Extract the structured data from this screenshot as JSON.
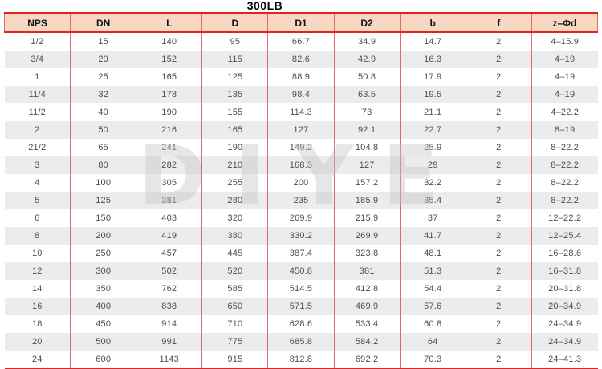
{
  "title": "300LB",
  "watermark": "DIYE",
  "table": {
    "columns": [
      "NPS",
      "DN",
      "L",
      "D",
      "D1",
      "D2",
      "b",
      "f",
      "z–Φd"
    ],
    "rows": [
      [
        "1/2",
        "15",
        "140",
        "95",
        "66.7",
        "34.9",
        "14.7",
        "2",
        "4–15.9"
      ],
      [
        "3/4",
        "20",
        "152",
        "115",
        "82.6",
        "42.9",
        "16.3",
        "2",
        "4–19"
      ],
      [
        "1",
        "25",
        "165",
        "125",
        "88.9",
        "50.8",
        "17.9",
        "2",
        "4–19"
      ],
      [
        "11/4",
        "32",
        "178",
        "135",
        "98.4",
        "63.5",
        "19.5",
        "2",
        "4–19"
      ],
      [
        "11/2",
        "40",
        "190",
        "155",
        "114.3",
        "73",
        "21.1",
        "2",
        "4–22.2"
      ],
      [
        "2",
        "50",
        "216",
        "165",
        "127",
        "92.1",
        "22.7",
        "2",
        "8–19"
      ],
      [
        "21/2",
        "65",
        "241",
        "190",
        "149.2",
        "104.8",
        "25.9",
        "2",
        "8–22.2"
      ],
      [
        "3",
        "80",
        "282",
        "210",
        "168.3",
        "127",
        "29",
        "2",
        "8–22.2"
      ],
      [
        "4",
        "100",
        "305",
        "255",
        "200",
        "157.2",
        "32.2",
        "2",
        "8–22.2"
      ],
      [
        "5",
        "125",
        "381",
        "280",
        "235",
        "185.9",
        "35.4",
        "2",
        "8–22.2"
      ],
      [
        "6",
        "150",
        "403",
        "320",
        "269.9",
        "215.9",
        "37",
        "2",
        "12–22.2"
      ],
      [
        "8",
        "200",
        "419",
        "380",
        "330.2",
        "269.9",
        "41.7",
        "2",
        "12–25.4"
      ],
      [
        "10",
        "250",
        "457",
        "445",
        "387.4",
        "323.8",
        "48.1",
        "2",
        "16–28.6"
      ],
      [
        "12",
        "300",
        "502",
        "520",
        "450.8",
        "381",
        "51.3",
        "2",
        "16–31.8"
      ],
      [
        "14",
        "350",
        "762",
        "585",
        "514.5",
        "412.8",
        "54.4",
        "2",
        "20–31.8"
      ],
      [
        "16",
        "400",
        "838",
        "650",
        "571.5",
        "469.9",
        "57.6",
        "2",
        "20–34.9"
      ],
      [
        "18",
        "450",
        "914",
        "710",
        "628.6",
        "533.4",
        "60.8",
        "2",
        "24–34.9"
      ],
      [
        "20",
        "500",
        "991",
        "775",
        "685.8",
        "584.2",
        "64",
        "2",
        "24–34.9"
      ],
      [
        "24",
        "600",
        "1143",
        "915",
        "812.8",
        "692.2",
        "70.3",
        "2",
        "24–41.3"
      ]
    ]
  },
  "colors": {
    "header_bg": "#f8d8c2",
    "row_alt_bg": "#ececec",
    "line_red": "#e2241f",
    "grid_red": "#e06a6a",
    "header_text": "#111111",
    "cell_text": "#4d4d4d",
    "watermark_gray": "#c4c4c4"
  }
}
